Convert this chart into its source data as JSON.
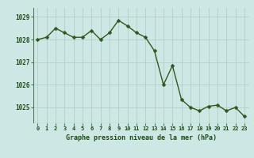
{
  "x": [
    0,
    1,
    2,
    3,
    4,
    5,
    6,
    7,
    8,
    9,
    10,
    11,
    12,
    13,
    14,
    15,
    16,
    17,
    18,
    19,
    20,
    21,
    22,
    23
  ],
  "y": [
    1028.0,
    1028.1,
    1028.5,
    1028.3,
    1028.1,
    1028.1,
    1028.4,
    1028.0,
    1028.3,
    1028.85,
    1028.6,
    1028.3,
    1028.1,
    1027.5,
    1026.0,
    1026.85,
    1025.35,
    1025.0,
    1024.85,
    1025.05,
    1025.1,
    1024.85,
    1025.0,
    1024.6
  ],
  "line_color": "#2d5a1b",
  "marker_color": "#2d5a1b",
  "bg_color": "#cde8e4",
  "grid_color": "#b0c8c4",
  "xlabel": "Graphe pression niveau de la mer (hPa)",
  "xlabel_color": "#1a4a10",
  "tick_color": "#1a4a10",
  "ytick_labels": [
    1025,
    1026,
    1027,
    1028,
    1029
  ],
  "ylim": [
    1024.3,
    1029.4
  ],
  "xlim": [
    -0.5,
    23.5
  ],
  "xtick_labels": [
    "0",
    "1",
    "2",
    "3",
    "4",
    "5",
    "6",
    "7",
    "8",
    "9",
    "10",
    "11",
    "12",
    "13",
    "14",
    "15",
    "16",
    "17",
    "18",
    "19",
    "20",
    "21",
    "22",
    "23"
  ]
}
